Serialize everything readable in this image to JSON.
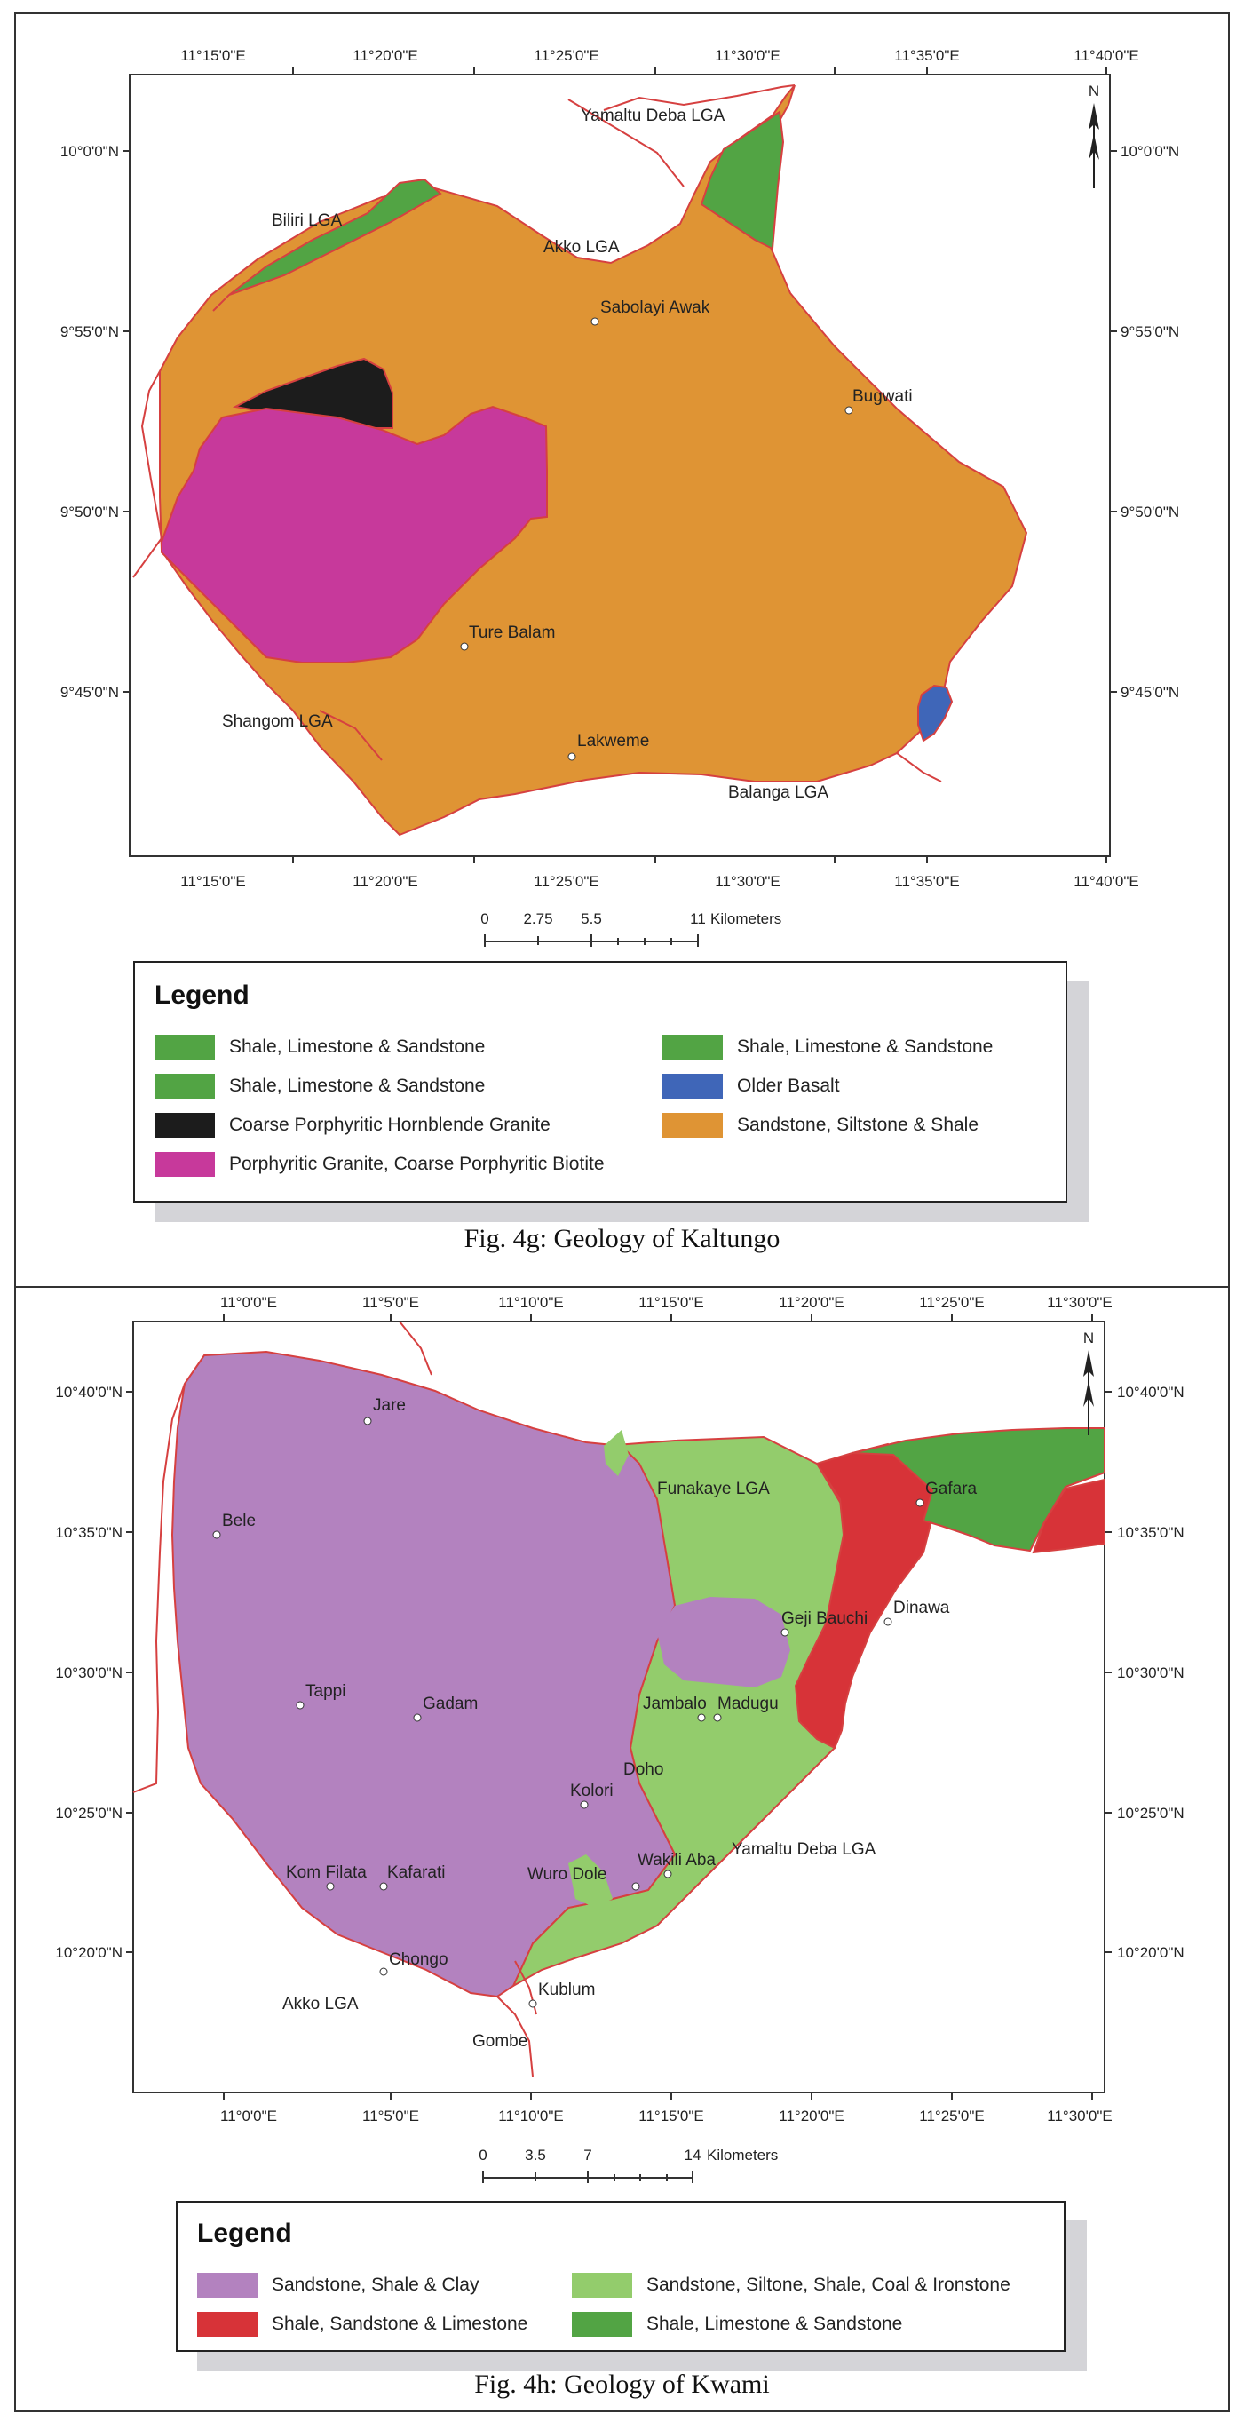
{
  "colors": {
    "sandstone_siltstone_shale": "#df9434",
    "shale_limestone_sandstone": "#52a444",
    "coarse_granite": "#1c1c1c",
    "porphyritic_granite": "#c7399b",
    "older_basalt": "#3f66b8",
    "sandstone_shale_clay": "#b382bf",
    "sandstone_siltone_coal": "#93cc6c",
    "shale_sandstone_limestone": "#d73338",
    "boundary": "#d64040"
  },
  "kaltungo": {
    "lon_ticks": [
      "11°15'0\"E",
      "11°20'0\"E",
      "11°25'0\"E",
      "11°30'0\"E",
      "11°35'0\"E",
      "11°40'0\"E"
    ],
    "lat_ticks": [
      "10°0'0\"N",
      "9°55'0\"N",
      "9°50'0\"N",
      "9°45'0\"N"
    ],
    "places": [
      {
        "name": "Yamaltu Deba LGA"
      },
      {
        "name": "Biliri LGA"
      },
      {
        "name": "Akko LGA"
      },
      {
        "name": "Sabolayi Awak"
      },
      {
        "name": "Bugwati"
      },
      {
        "name": "Ture Balam"
      },
      {
        "name": "Shangom LGA"
      },
      {
        "name": "Lakweme"
      },
      {
        "name": "Balanga LGA"
      }
    ],
    "north": "N",
    "scale": {
      "labels": [
        "0",
        "2.75",
        "5.5",
        "11"
      ],
      "unit": "Kilometers"
    },
    "legend": {
      "title": "Legend",
      "items": [
        {
          "label": "Shale, Limestone & Sandstone"
        },
        {
          "label": "Shale, Limestone & Sandstone"
        },
        {
          "label": "Shale, Limestone & Sandstone"
        },
        {
          "label": "Older Basalt"
        },
        {
          "label": "Coarse Porphyritic Hornblende Granite"
        },
        {
          "label": "Sandstone, Siltstone & Shale"
        },
        {
          "label": "Porphyritic Granite, Coarse Porphyritic Biotite"
        }
      ]
    },
    "caption": "Fig. 4g: Geology of Kaltungo"
  },
  "kwami": {
    "lon_ticks": [
      "11°0'0\"E",
      "11°5'0\"E",
      "11°10'0\"E",
      "11°15'0\"E",
      "11°20'0\"E",
      "11°25'0\"E",
      "11°30'0\"E"
    ],
    "lat_ticks": [
      "10°40'0\"N",
      "10°35'0\"N",
      "10°30'0\"N",
      "10°25'0\"N",
      "10°20'0\"N"
    ],
    "places": [
      {
        "name": "Jare"
      },
      {
        "name": "Bele"
      },
      {
        "name": "Funakaye LGA"
      },
      {
        "name": "Gafara"
      },
      {
        "name": "Geji Bauchi"
      },
      {
        "name": "Dinawa"
      },
      {
        "name": "Tappi"
      },
      {
        "name": "Gadam"
      },
      {
        "name": "Jambalo"
      },
      {
        "name": "Madugu"
      },
      {
        "name": "Doho"
      },
      {
        "name": "Kolori"
      },
      {
        "name": "Yamaltu Deba LGA"
      },
      {
        "name": "Kom Filata"
      },
      {
        "name": "Kafarati"
      },
      {
        "name": "Wuro Dole"
      },
      {
        "name": "Wakili Aba"
      },
      {
        "name": "Chongo"
      },
      {
        "name": "Akko LGA"
      },
      {
        "name": "Kublum"
      },
      {
        "name": "Gombe"
      }
    ],
    "north": "N",
    "scale": {
      "labels": [
        "0",
        "3.5",
        "7",
        "14"
      ],
      "unit": "Kilometers"
    },
    "legend": {
      "title": "Legend",
      "items": [
        {
          "label": "Sandstone, Shale & Clay"
        },
        {
          "label": "Sandstone, Siltone, Shale, Coal & Ironstone"
        },
        {
          "label": "Shale, Sandstone & Limestone"
        },
        {
          "label": "Shale, Limestone & Sandstone"
        }
      ]
    },
    "caption": "Fig. 4h: Geology of Kwami"
  }
}
